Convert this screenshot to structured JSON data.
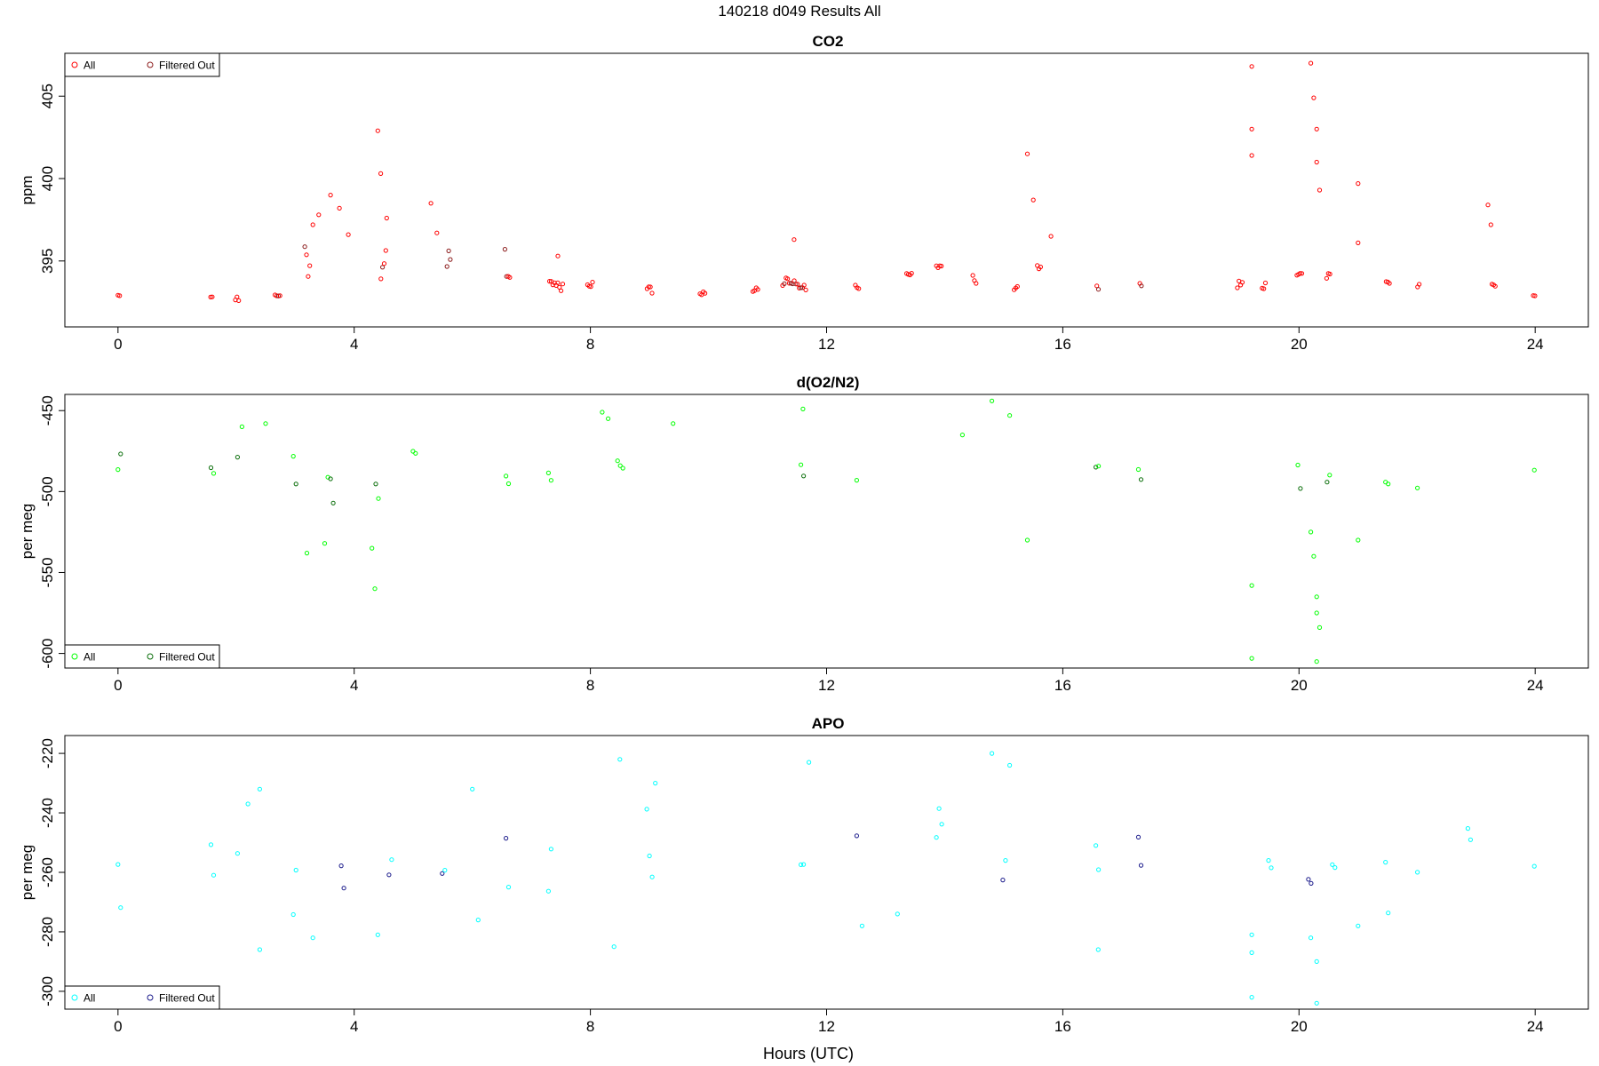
{
  "figure_title": "140218   d049   Results All",
  "xlabel": "Hours (UTC)",
  "chart_data": [
    {
      "type": "scatter",
      "title": "CO2",
      "ylabel": "ppm",
      "xlim": [
        -0.9,
        24.9
      ],
      "ylim": [
        391,
        407.6
      ],
      "xticks": [
        "0",
        "4",
        "8",
        "12",
        "16",
        "20",
        "24"
      ],
      "yticks": [
        "395",
        "400",
        "405"
      ],
      "legend": {
        "position": "top-left",
        "entries": [
          "All",
          "Filtered Out"
        ]
      },
      "colors": {
        "all": "#ff0000",
        "filtered": "#8b1a1a"
      },
      "trend": [
        [
          0,
          392.9
        ],
        [
          0.3,
          392.7
        ],
        [
          0.5,
          392.8
        ],
        [
          0.65,
          393.4
        ],
        [
          0.8,
          392.9
        ],
        [
          1.2,
          392.7
        ],
        [
          1.5,
          392.9
        ],
        [
          1.65,
          392.7
        ],
        [
          2.0,
          392.7
        ],
        [
          2.4,
          392.9
        ],
        [
          2.6,
          392.7
        ],
        [
          2.9,
          393.0
        ],
        [
          3.1,
          393.6
        ],
        [
          3.3,
          394.2
        ],
        [
          3.6,
          394.6
        ],
        [
          3.9,
          394.1
        ],
        [
          4.1,
          393.6
        ],
        [
          4.3,
          394.0
        ],
        [
          4.6,
          393.5
        ],
        [
          4.9,
          393.4
        ],
        [
          5.2,
          393.5
        ],
        [
          5.5,
          393.8
        ],
        [
          5.8,
          394.6
        ],
        [
          6.1,
          394.2
        ],
        [
          6.4,
          393.9
        ],
        [
          6.6,
          394.0
        ]
      ],
      "series": [
        {
          "name": "All",
          "segments": [
            [
              0,
              392.8
            ],
            [
              1.6,
              392.8
            ],
            [
              2.0,
              392.7
            ],
            [
              2.7,
              392.8
            ],
            [
              3.2,
              393.8
            ],
            [
              4.5,
              393.7
            ],
            [
              5.6,
              394.0
            ],
            [
              6.6,
              394.0
            ],
            [
              7.3,
              393.8
            ],
            [
              7.5,
              393.4
            ],
            [
              8.0,
              393.5
            ],
            [
              9.0,
              393.3
            ],
            [
              9.9,
              393.1
            ],
            [
              10.8,
              393.2
            ],
            [
              11.3,
              393.7
            ],
            [
              11.6,
              393.5
            ],
            [
              12.5,
              393.5
            ],
            [
              13.4,
              394.2
            ],
            [
              13.9,
              394.7
            ],
            [
              14.5,
              393.8
            ],
            [
              15.2,
              393.4
            ],
            [
              15.6,
              394.6
            ],
            [
              16.6,
              393.5
            ],
            [
              17.3,
              393.6
            ],
            [
              19.0,
              393.6
            ],
            [
              19.4,
              393.4
            ],
            [
              20.0,
              394.1
            ],
            [
              20.5,
              394.2
            ],
            [
              21.5,
              393.7
            ],
            [
              22.0,
              393.4
            ],
            [
              23.3,
              393.5
            ],
            [
              24.0,
              392.8
            ]
          ]
        },
        {
          "name": "Filtered Out",
          "segments": []
        }
      ],
      "spikes": [
        [
          3.3,
          397.2
        ],
        [
          3.4,
          397.8
        ],
        [
          3.6,
          399.0
        ],
        [
          3.75,
          398.2
        ],
        [
          3.9,
          396.6
        ],
        [
          4.4,
          402.9
        ],
        [
          4.45,
          400.3
        ],
        [
          4.55,
          397.6
        ],
        [
          5.3,
          398.5
        ],
        [
          5.4,
          396.7
        ],
        [
          7.45,
          395.3
        ],
        [
          11.45,
          396.3
        ],
        [
          15.4,
          401.5
        ],
        [
          15.5,
          398.7
        ],
        [
          15.8,
          396.5
        ],
        [
          19.2,
          406.8
        ],
        [
          19.2,
          403.0
        ],
        [
          19.2,
          401.4
        ],
        [
          20.2,
          407.0
        ],
        [
          20.25,
          404.9
        ],
        [
          20.3,
          403.0
        ],
        [
          20.3,
          401.0
        ],
        [
          20.35,
          399.3
        ],
        [
          21.0,
          399.7
        ],
        [
          21.0,
          396.1
        ],
        [
          23.2,
          398.4
        ],
        [
          23.25,
          397.2
        ]
      ]
    },
    {
      "type": "scatter",
      "title": "d(O2/N2)",
      "ylabel": "per meg",
      "xlim": [
        -0.9,
        24.9
      ],
      "ylim": [
        -609,
        -440
      ],
      "xticks": [
        "0",
        "4",
        "8",
        "12",
        "16",
        "20",
        "24"
      ],
      "yticks": [
        "-450",
        "-500",
        "-550",
        "-600"
      ],
      "legend": {
        "position": "bottom-left",
        "entries": [
          "All",
          "Filtered Out"
        ]
      },
      "colors": {
        "all": "#00ff00",
        "filtered": "#0a6e0a"
      },
      "baseline": [
        [
          0,
          -484
        ],
        [
          1.6,
          -484
        ],
        [
          2.0,
          -484
        ],
        [
          3.0,
          -490
        ],
        [
          3.6,
          -500
        ],
        [
          4.4,
          -498
        ],
        [
          5.0,
          -485
        ],
        [
          6.6,
          -484
        ],
        [
          7.3,
          -486
        ],
        [
          8.5,
          -480
        ],
        [
          11.6,
          -486
        ],
        [
          12.5,
          -485
        ],
        [
          16.6,
          -486
        ],
        [
          17.3,
          -486
        ],
        [
          20.0,
          -490
        ],
        [
          20.5,
          -488
        ],
        [
          21.5,
          -489
        ],
        [
          22.0,
          -484
        ],
        [
          24.0,
          -484
        ]
      ],
      "outliers": [
        [
          2.1,
          -460
        ],
        [
          2.5,
          -458
        ],
        [
          3.2,
          -538
        ],
        [
          3.5,
          -532
        ],
        [
          4.3,
          -535
        ],
        [
          4.35,
          -560
        ],
        [
          8.2,
          -451
        ],
        [
          8.3,
          -455
        ],
        [
          9.4,
          -458
        ],
        [
          11.6,
          -449
        ],
        [
          14.3,
          -465
        ],
        [
          14.8,
          -444
        ],
        [
          15.1,
          -453
        ],
        [
          15.4,
          -530
        ],
        [
          19.2,
          -558
        ],
        [
          19.2,
          -603
        ],
        [
          20.2,
          -525
        ],
        [
          20.25,
          -540
        ],
        [
          20.3,
          -565
        ],
        [
          20.3,
          -575
        ],
        [
          20.35,
          -584
        ],
        [
          20.3,
          -605
        ],
        [
          21.0,
          -530
        ]
      ]
    },
    {
      "type": "scatter",
      "title": "APO",
      "ylabel": "per meg",
      "xlim": [
        -0.9,
        24.9
      ],
      "ylim": [
        -306,
        -214
      ],
      "xticks": [
        "0",
        "4",
        "8",
        "12",
        "16",
        "20",
        "24"
      ],
      "yticks": [
        "-220",
        "-240",
        "-260",
        "-280",
        "-300"
      ],
      "legend": {
        "position": "bottom-left",
        "entries": [
          "All",
          "Filtered Out"
        ]
      },
      "colors": {
        "all": "#00ffff",
        "filtered": "#1a1a8b"
      },
      "baseline": [
        [
          0,
          -261
        ],
        [
          1.6,
          -259
        ],
        [
          2.0,
          -258
        ],
        [
          3.0,
          -262
        ],
        [
          3.8,
          -266
        ],
        [
          4.6,
          -260
        ],
        [
          5.5,
          -250
        ],
        [
          6.6,
          -252
        ],
        [
          7.3,
          -256
        ],
        [
          9.0,
          -256
        ],
        [
          11.6,
          -258
        ],
        [
          12.5,
          -257
        ],
        [
          13.9,
          -246
        ],
        [
          15.0,
          -256
        ],
        [
          16.6,
          -257
        ],
        [
          17.3,
          -256
        ],
        [
          19.5,
          -257
        ],
        [
          20.2,
          -264
        ],
        [
          20.6,
          -258
        ],
        [
          21.5,
          -262
        ],
        [
          22.0,
          -256
        ],
        [
          22.9,
          -249
        ],
        [
          24.0,
          -260
        ]
      ],
      "outliers": [
        [
          2.2,
          -237
        ],
        [
          2.4,
          -232
        ],
        [
          2.4,
          -286
        ],
        [
          3.3,
          -282
        ],
        [
          4.4,
          -281
        ],
        [
          6.0,
          -232
        ],
        [
          6.1,
          -276
        ],
        [
          8.4,
          -285
        ],
        [
          8.5,
          -222
        ],
        [
          9.1,
          -230
        ],
        [
          11.7,
          -223
        ],
        [
          12.6,
          -278
        ],
        [
          13.2,
          -274
        ],
        [
          14.8,
          -220
        ],
        [
          15.1,
          -224
        ],
        [
          16.6,
          -286
        ],
        [
          19.2,
          -302
        ],
        [
          19.2,
          -287
        ],
        [
          19.2,
          -281
        ],
        [
          20.2,
          -282
        ],
        [
          20.3,
          -290
        ],
        [
          20.3,
          -304
        ],
        [
          21.0,
          -278
        ]
      ]
    }
  ]
}
